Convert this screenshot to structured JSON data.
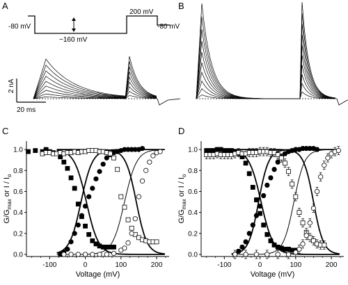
{
  "panels": {
    "A": {
      "letter": "A",
      "protocol_labels": {
        "hold": "-80 mV",
        "pre": "−160 mV",
        "test": "200 mV",
        "post": "-80 mV"
      },
      "scale_current": "2 nA",
      "scale_time": "20 ms"
    },
    "B": {
      "letter": "B"
    },
    "C": {
      "letter": "C"
    },
    "D": {
      "letter": "D"
    }
  },
  "chart_data": [
    {
      "panel": "C",
      "type": "scatter",
      "xlabel": "Voltage (mV)",
      "ylabel_parts": [
        "G/G",
        "max",
        " or I / I",
        "o"
      ],
      "xlim": [
        -165,
        235
      ],
      "ylim": [
        -0.02,
        1.08
      ],
      "xticks": [
        -100,
        0,
        100,
        200
      ],
      "xtick_labels": [
        "-100",
        "0",
        "100",
        "200"
      ],
      "yticks": [
        0.0,
        0.2,
        0.4,
        0.6,
        0.8,
        1.0
      ],
      "ytick_labels": [
        "0.0",
        "0.2",
        "0.4",
        "0.6",
        "0.8",
        "1.0"
      ],
      "series": [
        {
          "marker": "filled-square",
          "x": [
            -160,
            -140,
            -120,
            -110,
            -100,
            -90,
            -80,
            -70,
            -60,
            -50,
            -40,
            -30,
            -20,
            -10,
            0,
            10,
            20,
            30,
            40,
            50,
            60,
            70,
            80
          ],
          "y": [
            0.98,
            0.99,
            0.98,
            1.0,
            0.98,
            0.97,
            0.96,
            0.93,
            0.88,
            0.82,
            0.73,
            0.63,
            0.48,
            0.36,
            0.27,
            0.19,
            0.13,
            0.1,
            0.08,
            0.07,
            0.07,
            0.07,
            0.07
          ]
        },
        {
          "marker": "filled-circle",
          "x": [
            -70,
            -60,
            -50,
            -40,
            -30,
            -20,
            -10,
            0,
            10,
            20,
            30,
            40,
            50,
            60,
            70,
            80,
            90,
            100,
            110,
            120,
            130,
            140,
            150,
            160
          ],
          "y": [
            0.0,
            0.02,
            0.05,
            0.12,
            0.2,
            0.28,
            0.37,
            0.46,
            0.55,
            0.63,
            0.72,
            0.79,
            0.86,
            0.92,
            0.95,
            0.97,
            0.98,
            0.99,
            1.0,
            1.0,
            1.0,
            1.0,
            1.0,
            1.01
          ]
        },
        {
          "marker": "open-square",
          "x": [
            -120,
            -110,
            -100,
            -90,
            -80,
            -70,
            -60,
            -50,
            -40,
            -30,
            -20,
            -10,
            0,
            10,
            20,
            30,
            40,
            50,
            60,
            70,
            80,
            90,
            100,
            110,
            120,
            130,
            140,
            150,
            160,
            170,
            180,
            190,
            200
          ],
          "y": [
            0.96,
            0.97,
            0.97,
            0.96,
            0.96,
            0.97,
            0.96,
            0.97,
            0.97,
            0.98,
            0.97,
            0.98,
            0.98,
            0.99,
            0.99,
            0.99,
            0.98,
            0.98,
            0.97,
            0.96,
            0.92,
            0.81,
            0.55,
            0.45,
            0.33,
            0.25,
            0.19,
            0.16,
            0.14,
            0.13,
            0.12,
            0.12,
            0.12
          ]
        },
        {
          "marker": "open-circle",
          "x": [
            -60,
            -40,
            -20,
            0,
            20,
            40,
            60,
            80,
            100,
            110,
            120,
            130,
            140,
            150,
            160,
            170,
            180,
            190,
            200,
            210
          ],
          "y": [
            0.0,
            0.0,
            0.0,
            0.0,
            0.0,
            0.0,
            0.0,
            0.01,
            0.04,
            0.06,
            0.11,
            0.2,
            0.34,
            0.55,
            0.7,
            0.8,
            0.88,
            0.94,
            0.97,
            0.98
          ]
        }
      ]
    },
    {
      "panel": "D",
      "type": "scatter",
      "xlabel": "Voltage (mV)",
      "ylabel_parts": [
        "G/G",
        "max",
        " or I / I",
        "o"
      ],
      "xlim": [
        -165,
        235
      ],
      "ylim": [
        -0.02,
        1.08
      ],
      "xticks": [
        -100,
        0,
        100,
        200
      ],
      "xtick_labels": [
        "-100",
        "0",
        "100",
        "200"
      ],
      "yticks": [
        0.0,
        0.2,
        0.4,
        0.6,
        0.8,
        1.0
      ],
      "ytick_labels": [
        "0.0",
        "0.2",
        "0.4",
        "0.6",
        "0.8",
        "1.0"
      ],
      "series": [
        {
          "marker": "filled-square",
          "x": [
            -150,
            -140,
            -130,
            -120,
            -110,
            -100,
            -90,
            -80,
            -70,
            -60,
            -50,
            -40,
            -30,
            -20,
            -10,
            0,
            10,
            20,
            30,
            40,
            50,
            60,
            70,
            80,
            90,
            100
          ],
          "y": [
            0.99,
            0.99,
            0.99,
            1.0,
            1.0,
            0.99,
            0.99,
            0.99,
            0.98,
            0.96,
            0.93,
            0.87,
            0.77,
            0.64,
            0.52,
            0.39,
            0.28,
            0.19,
            0.13,
            0.09,
            0.07,
            0.06,
            0.05,
            0.05,
            0.04,
            0.04
          ]
        },
        {
          "marker": "filled-circle",
          "x": [
            -70,
            -60,
            -50,
            -40,
            -30,
            -20,
            -10,
            0,
            10,
            20,
            30,
            40,
            50,
            60,
            70,
            80,
            90,
            100,
            110,
            120,
            130,
            140,
            150,
            160
          ],
          "y": [
            0.0,
            0.03,
            0.07,
            0.12,
            0.2,
            0.28,
            0.37,
            0.46,
            0.56,
            0.66,
            0.73,
            0.81,
            0.88,
            0.93,
            0.96,
            0.98,
            0.99,
            1.0,
            1.0,
            1.01,
            1.01,
            1.01,
            1.01,
            1.0
          ]
        },
        {
          "marker": "open-square",
          "x": [
            -150,
            -140,
            -130,
            -120,
            -110,
            -100,
            -90,
            -80,
            -70,
            -60,
            -50,
            -40,
            -30,
            -20,
            -10,
            0,
            10,
            20,
            30,
            40,
            50,
            60,
            70,
            80,
            90,
            100,
            110,
            120,
            130,
            140,
            150,
            160,
            170,
            180
          ],
          "y": [
            0.95,
            0.95,
            0.95,
            0.96,
            0.95,
            0.95,
            0.95,
            0.95,
            0.96,
            0.97,
            0.96,
            0.96,
            0.97,
            0.97,
            0.97,
            0.98,
            0.98,
            0.98,
            0.97,
            0.97,
            0.95,
            0.92,
            0.87,
            0.79,
            0.67,
            0.55,
            0.4,
            0.3,
            0.21,
            0.16,
            0.13,
            0.1,
            0.09,
            0.09
          ]
        },
        {
          "marker": "open-circle",
          "x": [
            -70,
            -40,
            -10,
            20,
            50,
            80,
            100,
            110,
            120,
            130,
            140,
            150,
            160,
            170,
            180,
            190,
            200,
            210,
            220
          ],
          "y": [
            0.0,
            0.0,
            0.0,
            0.0,
            0.0,
            0.0,
            0.02,
            0.05,
            0.1,
            0.18,
            0.3,
            0.44,
            0.6,
            0.74,
            0.85,
            0.92,
            0.96,
            0.98,
            0.99
          ]
        }
      ]
    }
  ]
}
